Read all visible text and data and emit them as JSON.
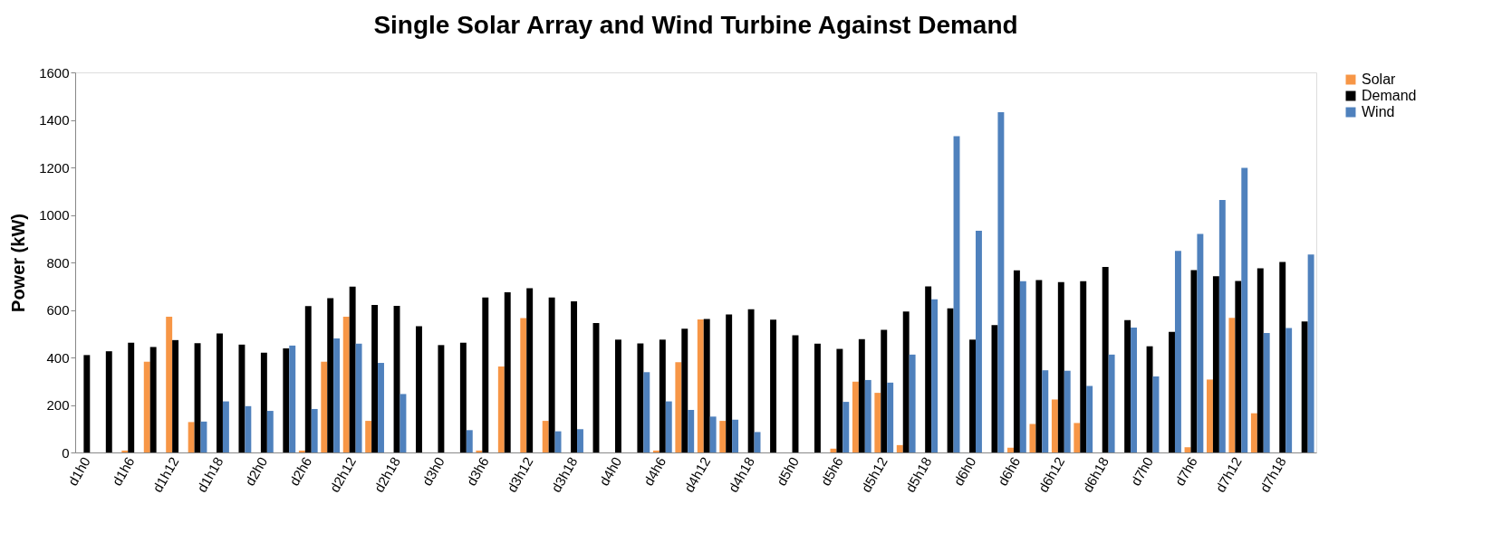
{
  "chart_data": {
    "type": "bar",
    "title": "Single Solar Array and Wind Turbine Against Demand",
    "ylabel": "Power (kW)",
    "categories": [
      "d1h0",
      null,
      "d1h6",
      null,
      "d1h12",
      null,
      "d1h18",
      null,
      "d2h0",
      null,
      "d2h6",
      null,
      "d2h12",
      null,
      "d2h18",
      null,
      "d3h0",
      null,
      "d3h6",
      null,
      "d3h12",
      null,
      "d3h18",
      null,
      "d4h0",
      null,
      "d4h6",
      null,
      "d4h12",
      null,
      "d4h18",
      null,
      "d5h0",
      null,
      "d5h6",
      null,
      "d5h12",
      null,
      "d5h18",
      null,
      "d6h0",
      null,
      "d6h6",
      null,
      "d6h12",
      null,
      "d6h18",
      null,
      "d7h0",
      null,
      "d7h6",
      null,
      "d7h12",
      null,
      "d7h18",
      null
    ],
    "series": [
      {
        "name": "Solar",
        "color": "#f79646",
        "values": [
          0,
          0,
          8,
          382,
          571,
          128,
          0,
          0,
          0,
          0,
          8,
          382,
          571,
          133,
          0,
          0,
          0,
          0,
          8,
          362,
          566,
          133,
          0,
          0,
          0,
          0,
          8,
          380,
          560,
          133,
          0,
          0,
          0,
          0,
          16,
          298,
          251,
          31,
          0,
          0,
          0,
          0,
          20,
          120,
          223,
          124,
          0,
          0,
          0,
          0,
          22,
          307,
          567,
          165,
          0,
          0
        ]
      },
      {
        "name": "Demand",
        "color": "#000000",
        "values": [
          410,
          426,
          462,
          444,
          473,
          460,
          501,
          454,
          420,
          438,
          616,
          650,
          698,
          621,
          617,
          531,
          452,
          462,
          652,
          674,
          691,
          652,
          636,
          545,
          475,
          459,
          475,
          521,
          562,
          581,
          603,
          559,
          493,
          458,
          436,
          477,
          516,
          593,
          699,
          607,
          475,
          536,
          767,
          726,
          717,
          721,
          781,
          557,
          447,
          508,
          768,
          742,
          722,
          775,
          802,
          551
        ]
      },
      {
        "name": "Wind",
        "color": "#4f81bd",
        "values": [
          0,
          0,
          0,
          0,
          0,
          130,
          215,
          195,
          175,
          450,
          183,
          480,
          458,
          377,
          246,
          0,
          0,
          94,
          0,
          0,
          0,
          89,
          98,
          0,
          0,
          338,
          215,
          179,
          151,
          138,
          86,
          0,
          0,
          0,
          213,
          305,
          294,
          412,
          645,
          1331,
          933,
          1432,
          721,
          346,
          344,
          280,
          412,
          526,
          320,
          849,
          920,
          1063,
          1198,
          503,
          524,
          833
        ]
      }
    ],
    "ylim": [
      0,
      1600
    ],
    "yticks": [
      0,
      200,
      400,
      600,
      800,
      1000,
      1200,
      1400,
      1600
    ],
    "grid": false,
    "legend": "right"
  }
}
